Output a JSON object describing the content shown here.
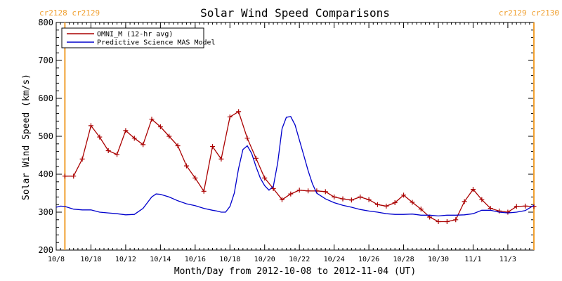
{
  "chart_data": {
    "type": "line",
    "title": "Solar Wind Speed Comparisons",
    "xlabel": "Month/Day from 2012-10-08 to 2012-11-04 (UT)",
    "ylabel": "Solar Wind Speed (km/s)",
    "xlim": [
      "2012-10-08T00:00",
      "2012-11-04T12:00"
    ],
    "ylim": [
      200,
      800
    ],
    "y_ticks": [
      "200",
      "300",
      "400",
      "500",
      "600",
      "700",
      "800"
    ],
    "x_ticks": [
      {
        "date": "2012-10-08T00:00",
        "label": "10/8"
      },
      {
        "date": "2012-10-10T00:00",
        "label": "10/10"
      },
      {
        "date": "2012-10-12T00:00",
        "label": "10/12"
      },
      {
        "date": "2012-10-14T00:00",
        "label": "10/14"
      },
      {
        "date": "2012-10-16T00:00",
        "label": "10/16"
      },
      {
        "date": "2012-10-18T00:00",
        "label": "10/18"
      },
      {
        "date": "2012-10-20T00:00",
        "label": "10/20"
      },
      {
        "date": "2012-10-22T00:00",
        "label": "10/22"
      },
      {
        "date": "2012-10-24T00:00",
        "label": "10/24"
      },
      {
        "date": "2012-10-26T00:00",
        "label": "10/26"
      },
      {
        "date": "2012-10-28T00:00",
        "label": "10/28"
      },
      {
        "date": "2012-10-30T00:00",
        "label": "10/30"
      },
      {
        "date": "2012-11-01T00:00",
        "label": "11/1"
      },
      {
        "date": "2012-11-03T00:00",
        "label": "11/3"
      }
    ],
    "legend_position": "top-left",
    "carrington_markers": [
      {
        "date": "2012-10-08T12:00",
        "label": "cr2128 cr2129",
        "side": "left"
      },
      {
        "date": "2012-11-04T12:00",
        "label": "cr2129 cr2130",
        "side": "right"
      }
    ],
    "series": [
      {
        "name": "OMNI_M (12-hr avg)",
        "color": "#aa0000",
        "markers": true,
        "x": [
          "2012-10-08T12:00",
          "2012-10-09T00:00",
          "2012-10-09T12:00",
          "2012-10-10T00:00",
          "2012-10-10T12:00",
          "2012-10-11T00:00",
          "2012-10-11T12:00",
          "2012-10-12T00:00",
          "2012-10-12T12:00",
          "2012-10-13T00:00",
          "2012-10-13T12:00",
          "2012-10-14T00:00",
          "2012-10-14T12:00",
          "2012-10-15T00:00",
          "2012-10-15T12:00",
          "2012-10-16T00:00",
          "2012-10-16T12:00",
          "2012-10-17T00:00",
          "2012-10-17T12:00",
          "2012-10-18T00:00",
          "2012-10-18T12:00",
          "2012-10-19T00:00",
          "2012-10-19T12:00",
          "2012-10-20T00:00",
          "2012-10-20T12:00",
          "2012-10-21T00:00",
          "2012-10-21T12:00",
          "2012-10-22T00:00",
          "2012-10-22T12:00",
          "2012-10-23T00:00",
          "2012-10-23T12:00",
          "2012-10-24T00:00",
          "2012-10-24T12:00",
          "2012-10-25T00:00",
          "2012-10-25T12:00",
          "2012-10-26T00:00",
          "2012-10-26T12:00",
          "2012-10-27T00:00",
          "2012-10-27T12:00",
          "2012-10-28T00:00",
          "2012-10-28T12:00",
          "2012-10-29T00:00",
          "2012-10-29T12:00",
          "2012-10-30T00:00",
          "2012-10-30T12:00",
          "2012-10-31T00:00",
          "2012-10-31T12:00",
          "2012-11-01T00:00",
          "2012-11-01T12:00",
          "2012-11-02T00:00",
          "2012-11-02T12:00",
          "2012-11-03T00:00",
          "2012-11-03T12:00",
          "2012-11-04T00:00",
          "2012-11-04T12:00"
        ],
        "y": [
          395,
          395,
          440,
          528,
          498,
          462,
          452,
          515,
          495,
          478,
          545,
          525,
          500,
          475,
          422,
          390,
          355,
          473,
          440,
          551,
          565,
          495,
          442,
          390,
          362,
          333,
          348,
          358,
          356,
          356,
          354,
          340,
          335,
          332,
          340,
          333,
          320,
          316,
          325,
          345,
          326,
          308,
          287,
          275,
          275,
          280,
          328,
          360,
          333,
          310,
          303,
          300,
          315,
          316,
          315
        ]
      },
      {
        "name": "Predictive Science MAS Model",
        "color": "#0000cc",
        "markers": false,
        "x": [
          "2012-10-08T00:00",
          "2012-10-08T06:00",
          "2012-10-08T12:00",
          "2012-10-09T00:00",
          "2012-10-09T12:00",
          "2012-10-10T00:00",
          "2012-10-10T12:00",
          "2012-10-11T00:00",
          "2012-10-11T12:00",
          "2012-10-12T00:00",
          "2012-10-12T12:00",
          "2012-10-13T00:00",
          "2012-10-13T12:00",
          "2012-10-13T18:00",
          "2012-10-14T00:00",
          "2012-10-14T12:00",
          "2012-10-15T00:00",
          "2012-10-15T12:00",
          "2012-10-16T00:00",
          "2012-10-16T12:00",
          "2012-10-17T00:00",
          "2012-10-17T06:00",
          "2012-10-17T12:00",
          "2012-10-17T18:00",
          "2012-10-18T00:00",
          "2012-10-18T06:00",
          "2012-10-18T12:00",
          "2012-10-18T18:00",
          "2012-10-19T00:00",
          "2012-10-19T06:00",
          "2012-10-19T12:00",
          "2012-10-19T18:00",
          "2012-10-20T00:00",
          "2012-10-20T06:00",
          "2012-10-20T12:00",
          "2012-10-20T18:00",
          "2012-10-21T00:00",
          "2012-10-21T06:00",
          "2012-10-21T12:00",
          "2012-10-21T18:00",
          "2012-10-22T00:00",
          "2012-10-22T06:00",
          "2012-10-22T12:00",
          "2012-10-22T18:00",
          "2012-10-23T00:00",
          "2012-10-23T12:00",
          "2012-10-24T00:00",
          "2012-10-24T12:00",
          "2012-10-25T00:00",
          "2012-10-25T12:00",
          "2012-10-26T00:00",
          "2012-10-26T12:00",
          "2012-10-27T00:00",
          "2012-10-27T12:00",
          "2012-10-28T00:00",
          "2012-10-28T12:00",
          "2012-10-29T00:00",
          "2012-10-29T12:00",
          "2012-10-30T00:00",
          "2012-10-30T12:00",
          "2012-10-31T00:00",
          "2012-10-31T12:00",
          "2012-11-01T00:00",
          "2012-11-01T12:00",
          "2012-11-02T00:00",
          "2012-11-02T12:00",
          "2012-11-03T00:00",
          "2012-11-03T12:00",
          "2012-11-04T00:00",
          "2012-11-04T12:00"
        ],
        "y": [
          313,
          316,
          315,
          308,
          306,
          306,
          300,
          298,
          296,
          293,
          294,
          310,
          340,
          348,
          347,
          340,
          330,
          322,
          317,
          310,
          305,
          303,
          300,
          300,
          315,
          350,
          415,
          465,
          475,
          455,
          420,
          390,
          370,
          358,
          368,
          430,
          520,
          550,
          552,
          530,
          490,
          450,
          410,
          375,
          350,
          335,
          325,
          318,
          313,
          307,
          303,
          300,
          296,
          294,
          294,
          295,
          292,
          292,
          290,
          292,
          292,
          293,
          296,
          305,
          305,
          300,
          298,
          300,
          304,
          318
        ]
      }
    ]
  }
}
